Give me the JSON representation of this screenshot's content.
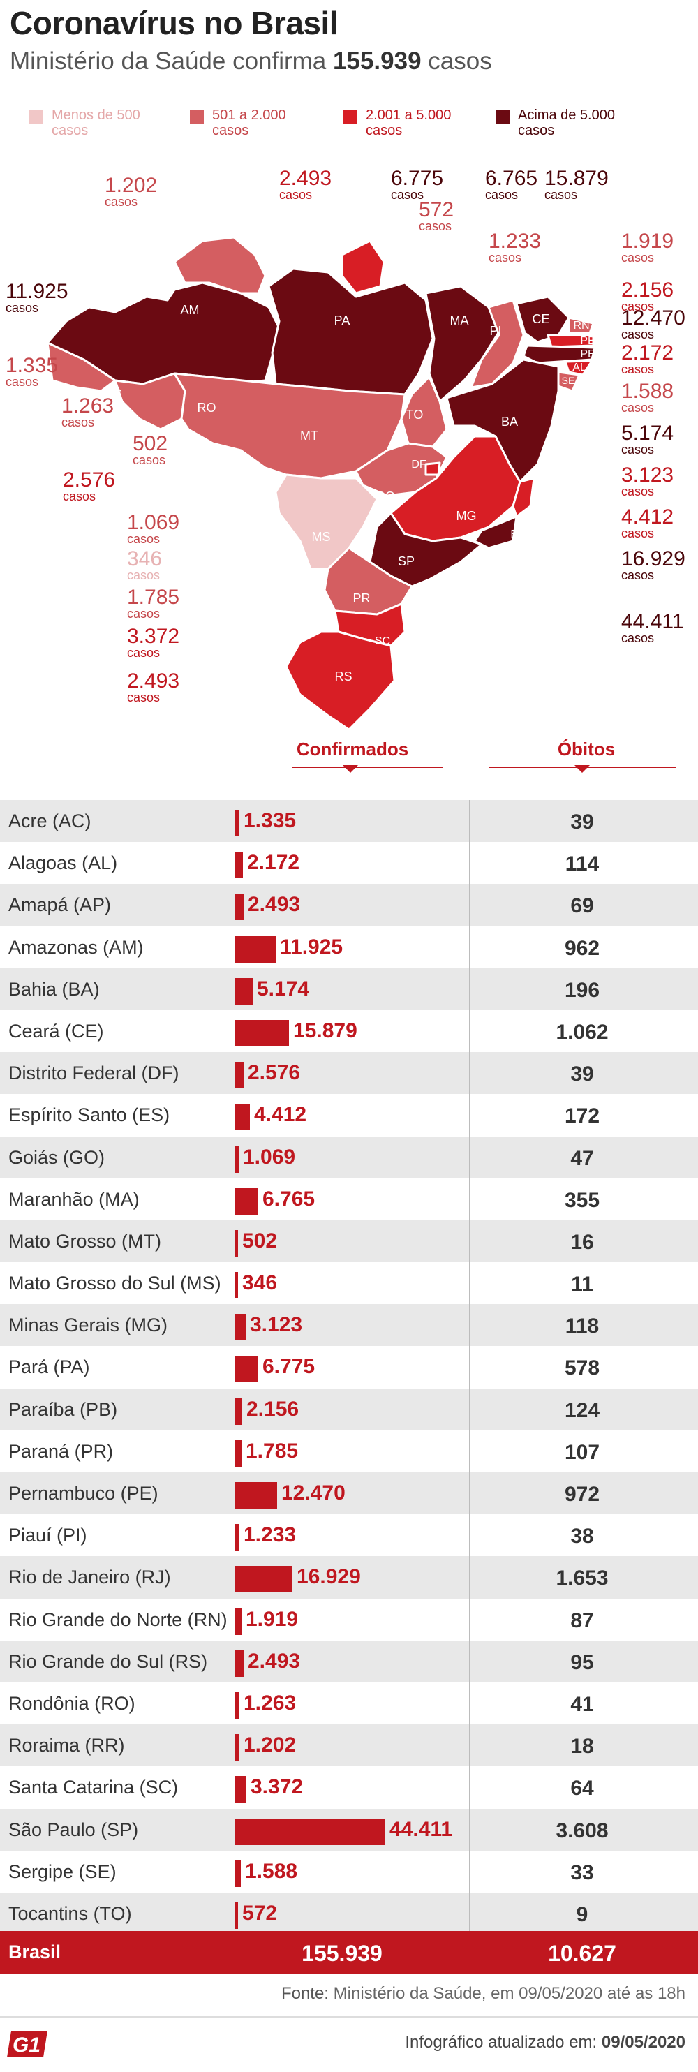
{
  "header": {
    "title": "Coronavírus no Brasil",
    "subtitle_prefix": "Ministério da Saúde confirma",
    "subtitle_value": "155.939",
    "subtitle_suffix": "casos"
  },
  "colors": {
    "accent": "#c0171f",
    "bin1": "#f1c7c7",
    "bin2": "#d45e61",
    "bin3": "#d81e25",
    "bin4": "#6b0a12"
  },
  "legend": [
    {
      "label": "Menos de 500 casos",
      "color": "#f1c7c7"
    },
    {
      "label": "501 a 2.000 casos",
      "color": "#d45e61"
    },
    {
      "label": "2.001 a 5.000 casos",
      "color": "#d81e25"
    },
    {
      "label": "Acima de 5.000 casos",
      "color": "#6b0a12"
    }
  ],
  "map": {
    "casos_word": "casos",
    "labels": [
      {
        "uf": "AC",
        "value": "1.335"
      },
      {
        "uf": "AL",
        "value": "2.172"
      },
      {
        "uf": "AP",
        "value": "2.493"
      },
      {
        "uf": "AM",
        "value": "11.925"
      },
      {
        "uf": "BA",
        "value": "5.174"
      },
      {
        "uf": "CE",
        "value": "15.879"
      },
      {
        "uf": "DF",
        "value": "2.576"
      },
      {
        "uf": "ES",
        "value": "4.412"
      },
      {
        "uf": "GO",
        "value": "1.069"
      },
      {
        "uf": "MA",
        "value": "6.765"
      },
      {
        "uf": "MT",
        "value": "502"
      },
      {
        "uf": "MS",
        "value": "346"
      },
      {
        "uf": "MG",
        "value": "3.123"
      },
      {
        "uf": "PA",
        "value": "6.775"
      },
      {
        "uf": "PB",
        "value": "2.156"
      },
      {
        "uf": "PR",
        "value": "1.785"
      },
      {
        "uf": "PE",
        "value": "12.470"
      },
      {
        "uf": "PI",
        "value": "1.233"
      },
      {
        "uf": "RJ",
        "value": "16.929"
      },
      {
        "uf": "RN",
        "value": "1.919"
      },
      {
        "uf": "RS",
        "value": "2.493"
      },
      {
        "uf": "RO",
        "value": "1.263"
      },
      {
        "uf": "RR",
        "value": "1.202"
      },
      {
        "uf": "SC",
        "value": "3.372"
      },
      {
        "uf": "SP",
        "value": "44.411"
      },
      {
        "uf": "SE",
        "value": "1.588"
      },
      {
        "uf": "TO",
        "value": "572"
      }
    ]
  },
  "table": {
    "col_confirmed": "Confirmados",
    "col_deaths": "Óbitos",
    "total_label": "Brasil",
    "total_confirmed": "155.939",
    "total_deaths": "10.627"
  },
  "chart_data": {
    "type": "bar",
    "categories": [
      "Acre (AC)",
      "Alagoas (AL)",
      "Amapá (AP)",
      "Amazonas (AM)",
      "Bahia (BA)",
      "Ceará (CE)",
      "Distrito Federal (DF)",
      "Espírito Santo (ES)",
      "Goiás (GO)",
      "Maranhão (MA)",
      "Mato Grosso (MT)",
      "Mato Grosso do Sul (MS)",
      "Minas Gerais (MG)",
      "Pará (PA)",
      "Paraíba (PB)",
      "Paraná (PR)",
      "Pernambuco (PE)",
      "Piauí (PI)",
      "Rio de Janeiro (RJ)",
      "Rio Grande do Norte (RN)",
      "Rio Grande do Sul (RS)",
      "Rondônia (RO)",
      "Roraima (RR)",
      "Santa Catarina (SC)",
      "São Paulo (SP)",
      "Sergipe (SE)",
      "Tocantins (TO)"
    ],
    "series": [
      {
        "name": "Confirmados",
        "values": [
          1335,
          2172,
          2493,
          11925,
          5174,
          15879,
          2576,
          4412,
          1069,
          6765,
          502,
          346,
          3123,
          6775,
          2156,
          1785,
          12470,
          1233,
          16929,
          1919,
          2493,
          1263,
          1202,
          3372,
          44411,
          1588,
          572
        ],
        "labels": [
          "1.335",
          "2.172",
          "2.493",
          "11.925",
          "5.174",
          "15.879",
          "2.576",
          "4.412",
          "1.069",
          "6.765",
          "502",
          "346",
          "3.123",
          "6.775",
          "2.156",
          "1.785",
          "12.470",
          "1.233",
          "16.929",
          "1.919",
          "2.493",
          "1.263",
          "1.202",
          "3.372",
          "44.411",
          "1.588",
          "572"
        ]
      },
      {
        "name": "Óbitos",
        "values": [
          39,
          114,
          69,
          962,
          196,
          1062,
          39,
          172,
          47,
          355,
          16,
          11,
          118,
          578,
          124,
          107,
          972,
          38,
          1653,
          87,
          95,
          41,
          18,
          64,
          3608,
          33,
          9
        ],
        "labels": [
          "39",
          "114",
          "69",
          "962",
          "196",
          "1.062",
          "39",
          "172",
          "47",
          "355",
          "16",
          "11",
          "118",
          "578",
          "124",
          "107",
          "972",
          "38",
          "1.653",
          "87",
          "95",
          "41",
          "18",
          "64",
          "3.608",
          "33",
          "9"
        ]
      }
    ]
  },
  "footer": {
    "source_label": "Fonte:",
    "source_text": "Ministério da Saúde, em 09/05/2020 até as 18h",
    "logo_text": "G1",
    "updated_label": "Infográfico atualizado em:",
    "updated_date": "09/05/2020"
  }
}
